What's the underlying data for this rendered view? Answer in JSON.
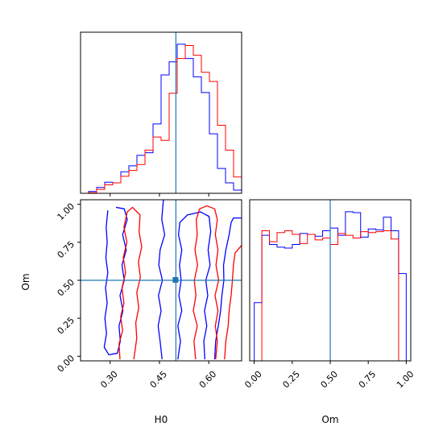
{
  "chart_data": {
    "type": "corner",
    "parameters": [
      "H0",
      "Om"
    ],
    "truth": {
      "H0": 0.5,
      "Om": 0.5
    },
    "colors": {
      "series_a": "#0000ff",
      "series_b": "#ff0000",
      "truth": "#1f77b4"
    },
    "panels": {
      "h0_hist": {
        "type": "histogram",
        "xlim": [
          0.21,
          0.7
        ],
        "bins": [
          0.21,
          0.2345,
          0.259,
          0.2835,
          0.308,
          0.3325,
          0.357,
          0.3815,
          0.406,
          0.4305,
          0.455,
          0.4795,
          0.504,
          0.5285,
          0.553,
          0.5775,
          0.602,
          0.6265,
          0.651,
          0.6755,
          0.7
        ],
        "series": [
          {
            "color": "blue",
            "counts": [
              0,
              3,
              9,
              17,
              16,
              33,
              42,
              58,
              62,
              106,
              181,
              201,
              228,
              206,
              178,
              154,
              91,
              38,
              16,
              5
            ]
          },
          {
            "color": "red",
            "counts": [
              0,
              1,
              6,
              13,
              16,
              26,
              35,
              44,
              66,
              86,
              81,
              153,
              206,
              226,
              211,
              185,
              171,
              104,
              66,
              25
            ]
          }
        ]
      },
      "om_hist": {
        "type": "histogram",
        "xlim": [
          -0.03,
          1.03
        ],
        "bins": [
          0.0,
          0.05,
          0.1,
          0.15,
          0.2,
          0.25,
          0.3,
          0.35,
          0.4,
          0.45,
          0.5,
          0.55,
          0.6,
          0.65,
          0.7,
          0.75,
          0.8,
          0.85,
          0.9,
          0.95,
          1.0
        ],
        "series": [
          {
            "color": "blue",
            "counts": [
              64,
              138,
              128,
              125,
              124,
              128,
              140,
              139,
              137,
              143,
              146,
              138,
              164,
              163,
              136,
              145,
              144,
              158,
              143,
              96
            ]
          },
          {
            "color": "red",
            "counts": [
              0,
              143,
              131,
              141,
              143,
              139,
              129,
              139,
              133,
              135,
              128,
              140,
              138,
              135,
              142,
              141,
              142,
              143,
              134,
              0
            ]
          }
        ]
      },
      "joint": {
        "type": "contour",
        "xlim": [
          0.21,
          0.7
        ],
        "ylim": [
          -0.03,
          1.03
        ],
        "contours": [
          {
            "color": "blue",
            "points": [
              [
                0.293,
                0.96
              ],
              [
                0.288,
                0.85
              ],
              [
                0.291,
                0.75
              ],
              [
                0.287,
                0.65
              ],
              [
                0.293,
                0.55
              ],
              [
                0.286,
                0.45
              ],
              [
                0.291,
                0.35
              ],
              [
                0.284,
                0.25
              ],
              [
                0.289,
                0.15
              ],
              [
                0.282,
                0.06
              ],
              [
                0.296,
                0.01
              ],
              [
                0.322,
                0.02
              ],
              [
                0.331,
                0.1
              ],
              [
                0.327,
                0.2
              ],
              [
                0.339,
                0.3
              ],
              [
                0.33,
                0.4
              ],
              [
                0.343,
                0.5
              ],
              [
                0.336,
                0.6
              ],
              [
                0.349,
                0.7
              ],
              [
                0.338,
                0.8
              ],
              [
                0.352,
                0.9
              ],
              [
                0.343,
                0.97
              ],
              [
                0.318,
                0.98
              ]
            ]
          },
          {
            "color": "blue",
            "points": [
              [
                0.462,
                1.03
              ],
              [
                0.457,
                0.9
              ],
              [
                0.466,
                0.8
              ],
              [
                0.452,
                0.7
              ],
              [
                0.448,
                0.6
              ],
              [
                0.459,
                0.5
              ],
              [
                0.447,
                0.4
              ],
              [
                0.455,
                0.3
              ],
              [
                0.446,
                0.2
              ],
              [
                0.452,
                0.1
              ],
              [
                0.458,
                -0.02
              ]
            ]
          },
          {
            "color": "blue",
            "points": [
              [
                0.506,
                -0.02
              ],
              [
                0.514,
                0.1
              ],
              [
                0.506,
                0.2
              ],
              [
                0.518,
                0.3
              ],
              [
                0.509,
                0.4
              ],
              [
                0.516,
                0.5
              ],
              [
                0.511,
                0.6
              ],
              [
                0.518,
                0.7
              ],
              [
                0.508,
                0.8
              ],
              [
                0.512,
                0.88
              ],
              [
                0.535,
                0.93
              ],
              [
                0.575,
                0.95
              ],
              [
                0.601,
                0.92
              ],
              [
                0.606,
                0.82
              ],
              [
                0.598,
                0.7
              ],
              [
                0.604,
                0.6
              ],
              [
                0.591,
                0.5
              ],
              [
                0.597,
                0.4
              ],
              [
                0.587,
                0.3
              ],
              [
                0.594,
                0.2
              ],
              [
                0.585,
                0.1
              ],
              [
                0.588,
                -0.02
              ]
            ]
          },
          {
            "color": "blue",
            "points": [
              [
                0.618,
                -0.02
              ],
              [
                0.621,
                0.1
              ],
              [
                0.629,
                0.2
              ],
              [
                0.636,
                0.3
              ],
              [
                0.64,
                0.4
              ],
              [
                0.646,
                0.5
              ],
              [
                0.645,
                0.6
              ],
              [
                0.652,
                0.7
              ],
              [
                0.662,
                0.8
              ],
              [
                0.668,
                0.88
              ],
              [
                0.675,
                0.91
              ],
              [
                0.7,
                0.91
              ]
            ]
          },
          {
            "color": "red",
            "points": [
              [
                0.33,
                -0.02
              ],
              [
                0.327,
                0.08
              ],
              [
                0.338,
                0.17
              ],
              [
                0.332,
                0.26
              ],
              [
                0.342,
                0.35
              ],
              [
                0.336,
                0.45
              ],
              [
                0.347,
                0.55
              ],
              [
                0.34,
                0.65
              ],
              [
                0.351,
                0.75
              ],
              [
                0.342,
                0.85
              ],
              [
                0.352,
                0.95
              ],
              [
                0.368,
                0.98
              ],
              [
                0.391,
                0.93
              ],
              [
                0.388,
                0.82
              ],
              [
                0.396,
                0.72
              ],
              [
                0.386,
                0.62
              ],
              [
                0.392,
                0.52
              ],
              [
                0.381,
                0.42
              ],
              [
                0.387,
                0.32
              ],
              [
                0.378,
                0.22
              ],
              [
                0.381,
                0.12
              ],
              [
                0.376,
                0.04
              ],
              [
                0.372,
                -0.02
              ]
            ]
          },
          {
            "color": "red",
            "points": [
              [
                0.56,
                -0.02
              ],
              [
                0.555,
                0.1
              ],
              [
                0.565,
                0.2
              ],
              [
                0.553,
                0.3
              ],
              [
                0.561,
                0.4
              ],
              [
                0.556,
                0.5
              ],
              [
                0.566,
                0.6
              ],
              [
                0.558,
                0.7
              ],
              [
                0.565,
                0.8
              ],
              [
                0.562,
                0.9
              ],
              [
                0.572,
                0.97
              ],
              [
                0.594,
                0.99
              ],
              [
                0.618,
                0.97
              ],
              [
                0.626,
                0.9
              ],
              [
                0.62,
                0.8
              ],
              [
                0.628,
                0.7
              ],
              [
                0.622,
                0.6
              ],
              [
                0.63,
                0.5
              ],
              [
                0.619,
                0.4
              ],
              [
                0.628,
                0.3
              ],
              [
                0.62,
                0.2
              ],
              [
                0.626,
                0.1
              ],
              [
                0.621,
                -0.02
              ]
            ]
          },
          {
            "color": "red",
            "points": [
              [
                0.648,
                -0.02
              ],
              [
                0.652,
                0.1
              ],
              [
                0.659,
                0.2
              ],
              [
                0.662,
                0.3
              ],
              [
                0.668,
                0.4
              ],
              [
                0.672,
                0.5
              ],
              [
                0.675,
                0.6
              ],
              [
                0.68,
                0.68
              ],
              [
                0.7,
                0.73
              ]
            ]
          }
        ]
      }
    },
    "axes": {
      "x_left": {
        "label": "H0",
        "ticks": [
          0.3,
          0.45,
          0.6
        ],
        "tick_labels": [
          "0.30",
          "0.45",
          "0.60"
        ]
      },
      "y_left": {
        "label": "Om",
        "ticks": [
          0.0,
          0.25,
          0.5,
          0.75,
          1.0
        ],
        "tick_labels": [
          "0.00",
          "0.25",
          "0.50",
          "0.75",
          "1.00"
        ]
      },
      "x_right": {
        "label": "Om",
        "ticks": [
          0.0,
          0.25,
          0.5,
          0.75,
          1.0
        ],
        "tick_labels": [
          "0.00",
          "0.25",
          "0.50",
          "0.75",
          "1.00"
        ]
      }
    }
  }
}
